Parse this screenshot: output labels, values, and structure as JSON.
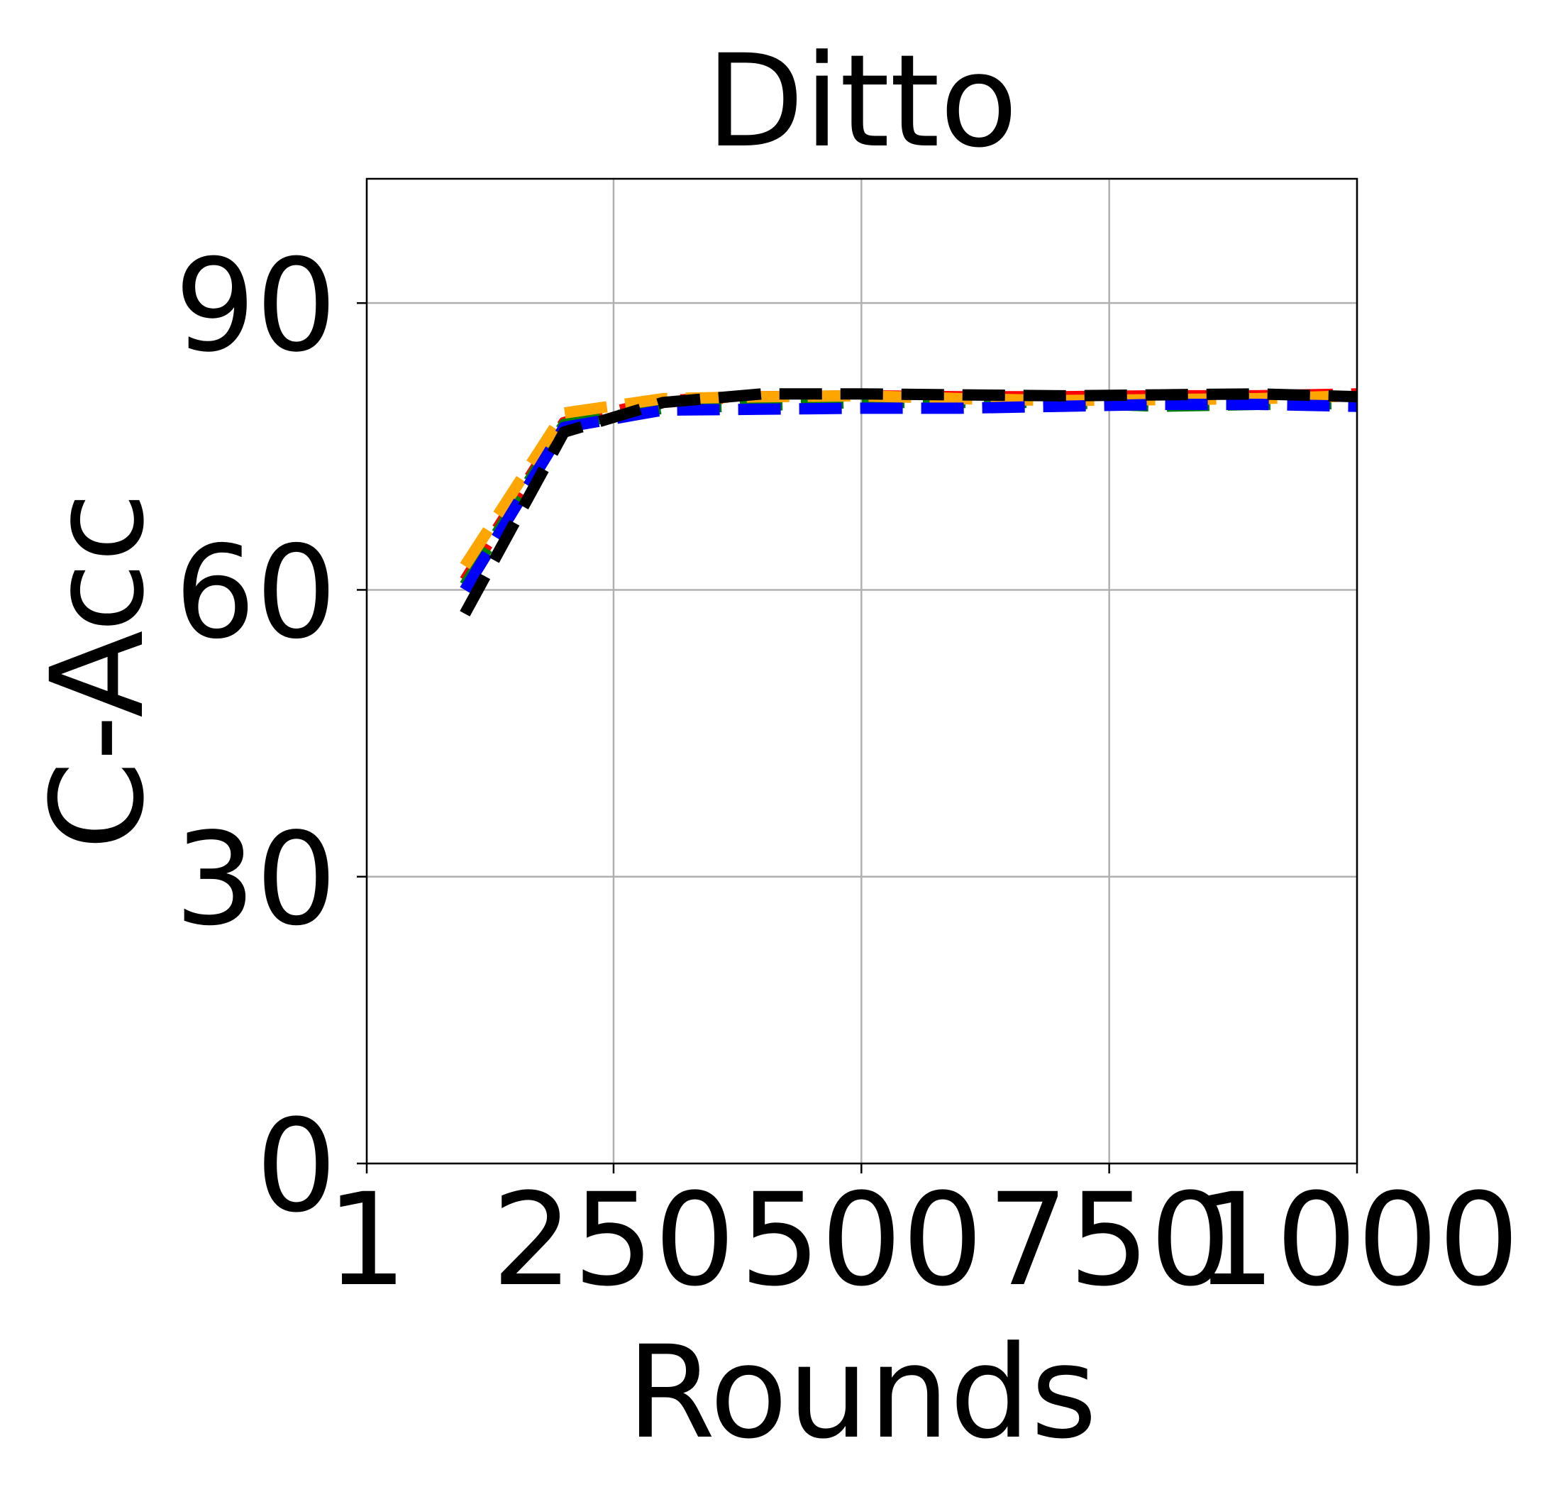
{
  "chart_data": {
    "type": "line",
    "title": "Ditto",
    "xlabel": "Rounds",
    "ylabel": "C-Acc",
    "xlim": [
      1,
      1000
    ],
    "ylim": [
      0,
      103
    ],
    "x_ticks": [
      {
        "value": 1,
        "label": "1"
      },
      {
        "value": 250,
        "label": "250"
      },
      {
        "value": 500,
        "label": "500"
      },
      {
        "value": 750,
        "label": "750"
      },
      {
        "value": 1000,
        "label": "1000"
      }
    ],
    "y_ticks": [
      {
        "value": 0,
        "label": "0"
      },
      {
        "value": 30,
        "label": "30"
      },
      {
        "value": 60,
        "label": "60"
      },
      {
        "value": 90,
        "label": "90"
      }
    ],
    "grid": true,
    "x": [
      100,
      200,
      300,
      400,
      500,
      600,
      700,
      800,
      900,
      1000
    ],
    "series": [
      {
        "color": "#ff0000",
        "style": "dashed",
        "values": [
          61.0,
          77.5,
          79.8,
          80.2,
          80.3,
          80.2,
          80.2,
          80.3,
          80.3,
          80.5
        ]
      },
      {
        "color": "#008000",
        "style": "dashed",
        "values": [
          60.5,
          77.3,
          79.0,
          79.3,
          79.6,
          79.6,
          79.6,
          79.2,
          79.4,
          79.5
        ]
      },
      {
        "color": "#ffa500",
        "style": "dashed",
        "values": [
          62.5,
          78.5,
          80.0,
          80.2,
          80.3,
          80.0,
          79.8,
          79.9,
          80.0,
          80.3
        ]
      },
      {
        "color": "#0000ff",
        "style": "dashed",
        "values": [
          60.0,
          77.0,
          78.8,
          78.9,
          79.0,
          79.0,
          79.2,
          79.4,
          79.4,
          79.2
        ]
      },
      {
        "color": "#000000",
        "style": "dashed",
        "values": [
          57.5,
          76.5,
          79.6,
          80.5,
          80.5,
          80.4,
          80.3,
          80.4,
          80.5,
          80.2
        ]
      }
    ]
  }
}
